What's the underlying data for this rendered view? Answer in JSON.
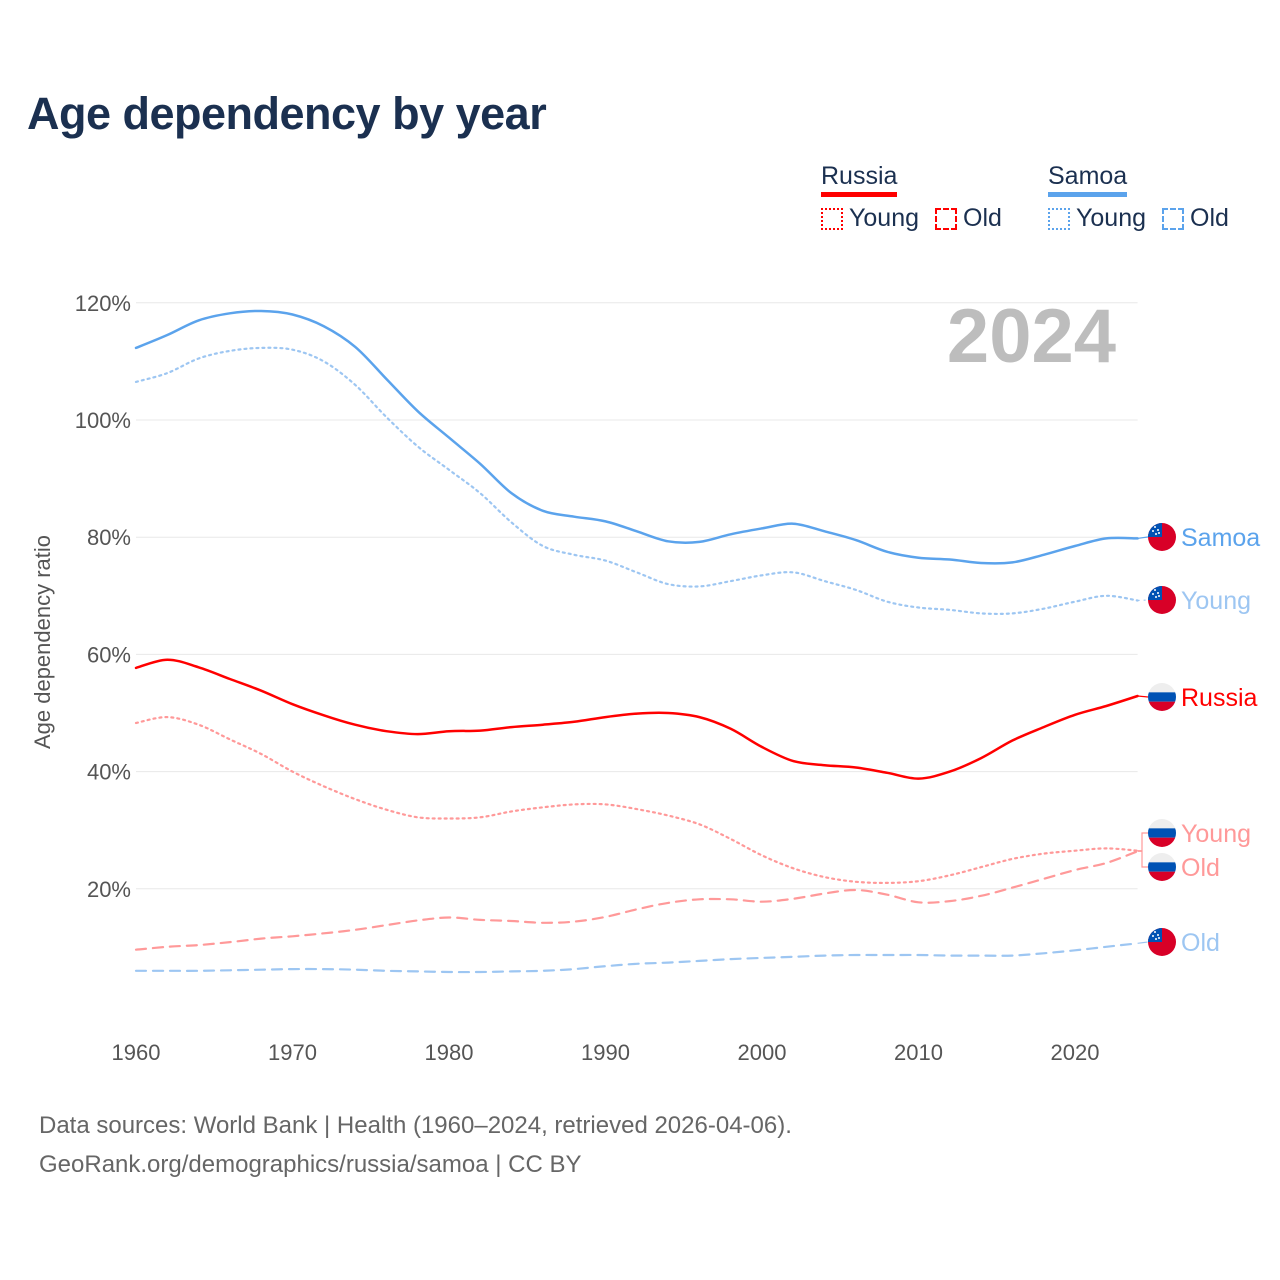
{
  "title": "Age dependency by year",
  "legend": {
    "groups": [
      {
        "name": "Russia",
        "color": "#ff0000",
        "items": [
          "Young",
          "Old"
        ]
      },
      {
        "name": "Samoa",
        "color": "#5ba3ec",
        "items": [
          "Young",
          "Old"
        ]
      }
    ]
  },
  "source": {
    "line1": "Data sources: World Bank | Health (1960–2024, retrieved 2026-04-06).",
    "line2": "GeoRank.org/demographics/russia/samoa | CC BY"
  },
  "chart_data": {
    "type": "line",
    "title": "Age dependency by year",
    "ylabel": "Age dependency ratio",
    "xlabel": "",
    "year_label": "2024",
    "xlim": [
      1960,
      2024
    ],
    "ylim": [
      0,
      125
    ],
    "x_ticks": [
      1960,
      1970,
      1980,
      1990,
      2000,
      2010,
      2020
    ],
    "y_ticks": [
      20,
      40,
      60,
      80,
      100,
      120
    ],
    "y_tick_labels": [
      "20%",
      "40%",
      "60%",
      "80%",
      "100%",
      "120%"
    ],
    "x_tick_labels": [
      "1960",
      "1970",
      "1980",
      "1990",
      "2000",
      "2010",
      "2020"
    ],
    "grid": true,
    "x": [
      1960,
      1962,
      1964,
      1966,
      1968,
      1970,
      1972,
      1974,
      1976,
      1978,
      1980,
      1982,
      1984,
      1986,
      1988,
      1990,
      1992,
      1994,
      1996,
      1998,
      2000,
      2002,
      2004,
      2006,
      2008,
      2010,
      2012,
      2014,
      2016,
      2018,
      2020,
      2022,
      2024
    ],
    "series": [
      {
        "name": "Samoa",
        "country": "Samoa",
        "style": "solid",
        "color": "#5ba3ec",
        "end_label": "Samoa",
        "values": [
          112.3,
          114.5,
          117,
          118.2,
          118.6,
          118,
          116,
          112.5,
          107,
          101.5,
          97,
          92.5,
          87.5,
          84.5,
          83.5,
          82.7,
          81,
          79.3,
          79.2,
          80.5,
          81.5,
          82.3,
          81,
          79.5,
          77.5,
          76.5,
          76.2,
          75.6,
          75.7,
          77,
          78.5,
          79.8,
          79.8
        ]
      },
      {
        "name": "Samoa Young",
        "country": "Samoa",
        "style": "dotted",
        "color": "#9dc6f2",
        "end_label": "Young",
        "values": [
          106.5,
          108,
          110.5,
          111.8,
          112.3,
          112,
          110,
          106,
          100.5,
          95.5,
          91.5,
          87.5,
          82.5,
          78.5,
          77,
          76,
          74,
          72,
          71.6,
          72.5,
          73.5,
          74,
          72.5,
          71,
          69,
          68,
          67.6,
          67,
          67,
          67.8,
          69,
          70,
          69.2
        ]
      },
      {
        "name": "Russia",
        "country": "Russia",
        "style": "solid",
        "color": "#ff0000",
        "end_label": "Russia",
        "values": [
          57.7,
          59.1,
          57.8,
          55.8,
          53.8,
          51.5,
          49.6,
          48,
          46.9,
          46.4,
          46.9,
          47,
          47.6,
          48,
          48.5,
          49.3,
          49.9,
          50,
          49.3,
          47.3,
          44.2,
          41.8,
          41.1,
          40.7,
          39.8,
          38.8,
          40,
          42.3,
          45.3,
          47.6,
          49.7,
          51.2,
          52.9
        ]
      },
      {
        "name": "Russia Young",
        "country": "Russia",
        "style": "dotted",
        "color": "#ff9999",
        "end_label": "Young",
        "values": [
          48.3,
          49.3,
          48,
          45.5,
          43,
          40,
          37.5,
          35.3,
          33.5,
          32.2,
          32,
          32.2,
          33.2,
          33.9,
          34.4,
          34.4,
          33.6,
          32.5,
          31,
          28.5,
          25.7,
          23.5,
          22,
          21.2,
          21,
          21.3,
          22.3,
          23.7,
          25.1,
          26,
          26.5,
          26.9,
          26.5
        ]
      },
      {
        "name": "Russia Old",
        "country": "Russia",
        "style": "dashed",
        "color": "#ff9999",
        "end_label": "Old",
        "values": [
          9.6,
          10.1,
          10.4,
          10.9,
          11.5,
          11.9,
          12.4,
          13,
          13.8,
          14.6,
          15.1,
          14.7,
          14.5,
          14.2,
          14.4,
          15.2,
          16.5,
          17.6,
          18.2,
          18.2,
          17.8,
          18.3,
          19.2,
          19.8,
          19,
          17.7,
          17.9,
          18.8,
          20.2,
          21.7,
          23.2,
          24.4,
          26.4
        ]
      },
      {
        "name": "Samoa Old",
        "country": "Samoa",
        "style": "dashed",
        "color": "#9dc6f2",
        "end_label": "Old",
        "values": [
          6,
          6,
          6,
          6.1,
          6.2,
          6.3,
          6.3,
          6.2,
          6,
          5.9,
          5.8,
          5.8,
          5.9,
          6,
          6.3,
          6.8,
          7.2,
          7.4,
          7.7,
          8,
          8.2,
          8.4,
          8.6,
          8.7,
          8.7,
          8.7,
          8.6,
          8.6,
          8.6,
          9,
          9.5,
          10.1,
          10.7
        ]
      }
    ]
  }
}
